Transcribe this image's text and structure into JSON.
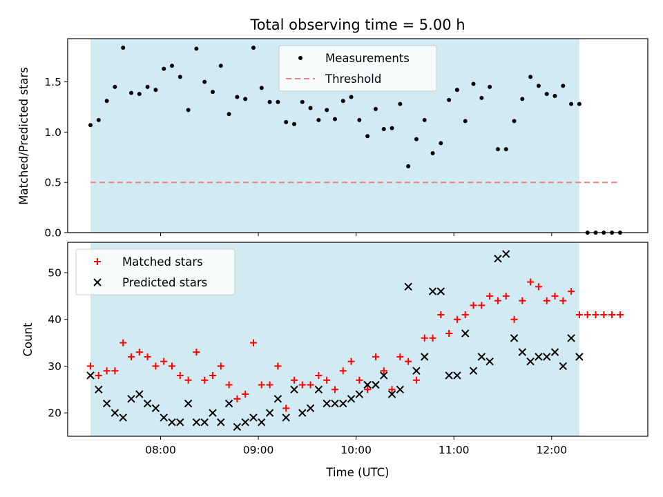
{
  "chart_data": [
    {
      "type": "scatter",
      "title": "Total observing time = 5.00 h",
      "xlabel": "",
      "ylabel": "Matched/Predicted stars",
      "ylim": [
        0,
        1.93
      ],
      "xlim": [
        "07:03",
        "12:59"
      ],
      "yticks": [
        0.0,
        0.5,
        1.0,
        1.5
      ],
      "ytick_labels": [
        "0.0",
        "0.5",
        "1.0",
        "1.5"
      ],
      "shaded_span": [
        "07:17",
        "12:17"
      ],
      "shade_color": "#add8e6",
      "legend_location": "upper center",
      "legend": [
        "Measurements",
        "Threshold"
      ],
      "series": [
        {
          "name": "Measurements",
          "marker": "dot",
          "color": "#000000",
          "x": [
            "07:17",
            "07:22",
            "07:27",
            "07:32",
            "07:37",
            "07:42",
            "07:47",
            "07:52",
            "07:57",
            "08:02",
            "08:07",
            "08:12",
            "08:17",
            "08:22",
            "08:27",
            "08:32",
            "08:37",
            "08:42",
            "08:47",
            "08:52",
            "08:57",
            "09:02",
            "09:07",
            "09:12",
            "09:17",
            "09:22",
            "09:27",
            "09:32",
            "09:37",
            "09:42",
            "09:47",
            "09:52",
            "09:57",
            "10:02",
            "10:07",
            "10:12",
            "10:17",
            "10:22",
            "10:27",
            "10:32",
            "10:37",
            "10:42",
            "10:47",
            "10:52",
            "10:57",
            "11:02",
            "11:07",
            "11:12",
            "11:17",
            "11:22",
            "11:27",
            "11:32",
            "11:37",
            "11:42",
            "11:47",
            "11:52",
            "11:57",
            "12:02",
            "12:07",
            "12:12",
            "12:17",
            "12:22",
            "12:27",
            "12:32",
            "12:37",
            "12:42"
          ],
          "y": [
            1.07,
            1.12,
            1.31,
            1.45,
            1.84,
            1.39,
            1.38,
            1.45,
            1.42,
            1.63,
            1.66,
            1.55,
            1.22,
            1.83,
            1.5,
            1.4,
            1.66,
            1.18,
            1.35,
            1.33,
            1.84,
            1.44,
            1.3,
            1.3,
            1.1,
            1.08,
            1.3,
            1.24,
            1.12,
            1.22,
            1.13,
            1.31,
            1.35,
            1.12,
            0.96,
            1.23,
            1.03,
            1.04,
            1.28,
            0.66,
            0.93,
            1.12,
            0.79,
            0.89,
            1.32,
            1.42,
            1.11,
            1.48,
            1.34,
            1.45,
            0.83,
            0.83,
            1.11,
            1.33,
            1.55,
            1.46,
            1.38,
            1.36,
            1.46,
            1.28,
            1.28,
            0.0,
            0.0,
            0.0,
            0.0,
            0.0
          ]
        },
        {
          "name": "Threshold",
          "style": "dashed",
          "color": "#f08080",
          "x": [
            "07:17",
            "12:42"
          ],
          "y": [
            0.5,
            0.5
          ]
        }
      ]
    },
    {
      "type": "scatter",
      "title": "",
      "xlabel": "Time (UTC)",
      "ylabel": "Count",
      "ylim": [
        15,
        56.5
      ],
      "xlim": [
        "07:03",
        "12:59"
      ],
      "xticks": [
        "08:00",
        "09:00",
        "10:00",
        "11:00",
        "12:00"
      ],
      "yticks": [
        20,
        30,
        40,
        50
      ],
      "ytick_labels": [
        "20",
        "30",
        "40",
        "50"
      ],
      "shaded_span": [
        "07:17",
        "12:17"
      ],
      "shade_color": "#add8e6",
      "legend_location": "upper left",
      "legend": [
        "Matched stars",
        "Predicted stars"
      ],
      "series": [
        {
          "name": "Matched stars",
          "marker": "plus",
          "color": "#ff0000",
          "x": [
            "07:17",
            "07:22",
            "07:27",
            "07:32",
            "07:37",
            "07:42",
            "07:47",
            "07:52",
            "07:57",
            "08:02",
            "08:07",
            "08:12",
            "08:17",
            "08:22",
            "08:27",
            "08:32",
            "08:37",
            "08:42",
            "08:47",
            "08:52",
            "08:57",
            "09:02",
            "09:07",
            "09:12",
            "09:17",
            "09:22",
            "09:27",
            "09:32",
            "09:37",
            "09:42",
            "09:47",
            "09:52",
            "09:57",
            "10:02",
            "10:07",
            "10:12",
            "10:17",
            "10:22",
            "10:27",
            "10:32",
            "10:37",
            "10:42",
            "10:47",
            "10:52",
            "10:57",
            "11:02",
            "11:07",
            "11:12",
            "11:17",
            "11:22",
            "11:27",
            "11:32",
            "11:37",
            "11:42",
            "11:47",
            "11:52",
            "11:57",
            "12:02",
            "12:07",
            "12:12",
            "12:17",
            "12:22",
            "12:27",
            "12:32",
            "12:37",
            "12:42"
          ],
          "y": [
            30,
            28,
            29,
            29,
            35,
            32,
            33,
            32,
            30,
            31,
            30,
            28,
            27,
            33,
            27,
            28,
            30,
            26,
            23,
            24,
            35,
            26,
            26,
            30,
            21,
            27,
            26,
            26,
            28,
            27,
            25,
            29,
            31,
            27,
            25,
            32,
            29,
            25,
            32,
            31,
            27,
            36,
            36,
            41,
            37,
            40,
            41,
            43,
            43,
            45,
            44,
            45,
            40,
            44,
            48,
            47,
            44,
            45,
            44,
            46,
            41,
            41,
            41,
            41,
            41,
            41
          ]
        },
        {
          "name": "Predicted stars",
          "marker": "x",
          "color": "#000000",
          "x": [
            "07:17",
            "07:22",
            "07:27",
            "07:32",
            "07:37",
            "07:42",
            "07:47",
            "07:52",
            "07:57",
            "08:02",
            "08:07",
            "08:12",
            "08:17",
            "08:22",
            "08:27",
            "08:32",
            "08:37",
            "08:42",
            "08:47",
            "08:52",
            "08:57",
            "09:02",
            "09:07",
            "09:12",
            "09:17",
            "09:22",
            "09:27",
            "09:32",
            "09:37",
            "09:42",
            "09:47",
            "09:52",
            "09:57",
            "10:02",
            "10:07",
            "10:12",
            "10:17",
            "10:22",
            "10:27",
            "10:32",
            "10:37",
            "10:42",
            "10:47",
            "10:52",
            "10:57",
            "11:02",
            "11:07",
            "11:12",
            "11:17",
            "11:22",
            "11:27",
            "11:32",
            "11:37",
            "11:42",
            "11:47",
            "11:52",
            "11:57",
            "12:02",
            "12:07",
            "12:12",
            "12:17"
          ],
          "y": [
            28,
            25,
            22,
            20,
            19,
            23,
            24,
            22,
            21,
            19,
            18,
            18,
            22,
            18,
            18,
            20,
            18,
            22,
            17,
            18,
            19,
            18,
            20,
            23,
            19,
            25,
            20,
            21,
            25,
            22,
            22,
            22,
            23,
            24,
            26,
            26,
            28,
            24,
            25,
            47,
            29,
            32,
            46,
            46,
            28,
            28,
            37,
            29,
            32,
            31,
            53,
            54,
            36,
            33,
            31,
            32,
            32,
            33,
            30,
            36,
            32
          ]
        }
      ]
    }
  ]
}
